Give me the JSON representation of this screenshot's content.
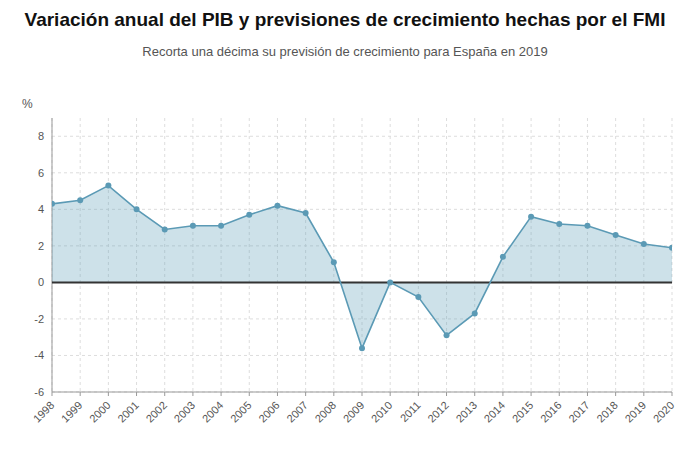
{
  "chart_data": {
    "type": "area",
    "title": "Variación anual del PIB y previsiones de crecimiento hechas por el FMI",
    "subtitle": "Recorta una décima su previsión de crecimiento para España en 2019",
    "y_label": "%",
    "x": [
      1998,
      1999,
      2000,
      2001,
      2002,
      2003,
      2004,
      2005,
      2006,
      2007,
      2008,
      2009,
      2010,
      2011,
      2012,
      2013,
      2014,
      2015,
      2016,
      2017,
      2018,
      2019,
      2020
    ],
    "values": [
      4.3,
      4.5,
      5.3,
      4.0,
      2.9,
      3.1,
      3.1,
      3.7,
      4.2,
      3.8,
      1.1,
      -3.6,
      0.0,
      -0.8,
      -2.9,
      -1.7,
      1.4,
      3.6,
      3.2,
      3.1,
      2.6,
      2.1,
      1.9
    ],
    "color": "#5b9ab5",
    "marker": "circle",
    "xlim": [
      1998,
      2020
    ],
    "xticks": [
      1998,
      1999,
      2000,
      2001,
      2002,
      2003,
      2004,
      2005,
      2006,
      2007,
      2008,
      2009,
      2010,
      2011,
      2012,
      2013,
      2014,
      2015,
      2016,
      2017,
      2018,
      2019,
      2020
    ],
    "ylim": [
      -6,
      9
    ],
    "yticks": [
      -6,
      -4,
      -2,
      0,
      2,
      4,
      6,
      8
    ],
    "grid": true
  }
}
